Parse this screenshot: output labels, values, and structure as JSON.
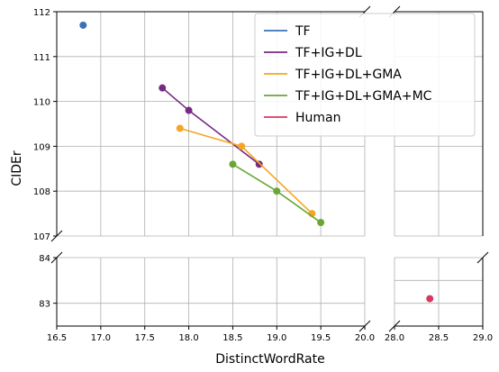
{
  "chart_data": {
    "type": "line",
    "title": "",
    "xlabel": "DistinctWordRate",
    "ylabel": "CIDEr",
    "grid": true,
    "legend_position": "top-right",
    "broken_axes": {
      "x_left_range": [
        16.5,
        20.0
      ],
      "x_right_range": [
        28.0,
        29.0
      ],
      "y_upper_range": [
        107,
        112
      ],
      "y_lower_range": [
        82.5,
        84
      ]
    },
    "x_ticks_left": [
      "16.5",
      "17.0",
      "17.5",
      "18.0",
      "18.5",
      "19.0",
      "19.5",
      "20.0"
    ],
    "x_ticks_right": [
      "28.0",
      "28.5",
      "29.0"
    ],
    "y_ticks_upper": [
      "107",
      "108",
      "109",
      "110",
      "111",
      "112"
    ],
    "y_ticks_lower": [
      "83",
      "84"
    ],
    "series": [
      {
        "name": "TF",
        "color": "#3a72b8",
        "points": [
          [
            16.8,
            111.7
          ]
        ]
      },
      {
        "name": "TF+IG+DL",
        "color": "#762a83",
        "points": [
          [
            17.7,
            110.3
          ],
          [
            18.0,
            109.8
          ],
          [
            18.8,
            108.6
          ]
        ]
      },
      {
        "name": "TF+IG+DL+GMA",
        "color": "#f5a623",
        "points": [
          [
            17.9,
            109.4
          ],
          [
            18.6,
            109.0
          ],
          [
            19.4,
            107.5
          ]
        ]
      },
      {
        "name": "TF+IG+DL+GMA+MC",
        "color": "#6aa636",
        "points": [
          [
            18.5,
            108.6
          ],
          [
            19.0,
            108.0
          ],
          [
            19.5,
            107.3
          ]
        ]
      },
      {
        "name": "Human",
        "color": "#d6385f",
        "points": [
          [
            28.4,
            83.1
          ]
        ]
      }
    ]
  }
}
